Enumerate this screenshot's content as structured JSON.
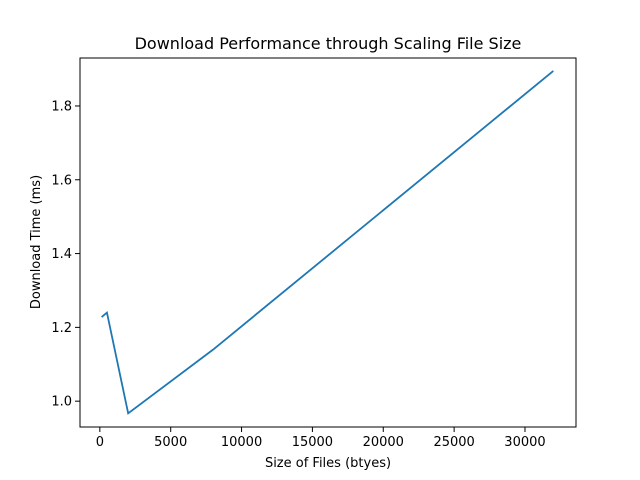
{
  "chart_data": {
    "type": "line",
    "title": "Download Performance through Scaling File Size",
    "xlabel": "Size of Files (btyes)",
    "ylabel": "Download Time (ms)",
    "xlim": [
      -1400,
      33600
    ],
    "ylim": [
      0.93,
      1.93
    ],
    "xticks": [
      0,
      5000,
      10000,
      15000,
      20000,
      25000,
      30000
    ],
    "yticks": [
      1.0,
      1.2,
      1.4,
      1.6,
      1.8
    ],
    "xtick_labels": [
      "0",
      "5000",
      "10000",
      "15000",
      "20000",
      "25000",
      "30000"
    ],
    "ytick_labels": [
      "1.0",
      "1.2",
      "1.4",
      "1.6",
      "1.8"
    ],
    "grid": false,
    "color": "#1f77b4",
    "series": [
      {
        "x": [
          125,
          500,
          2000,
          8000,
          32000
        ],
        "y": [
          1.228,
          1.24,
          0.967,
          1.14,
          1.895
        ]
      }
    ]
  }
}
